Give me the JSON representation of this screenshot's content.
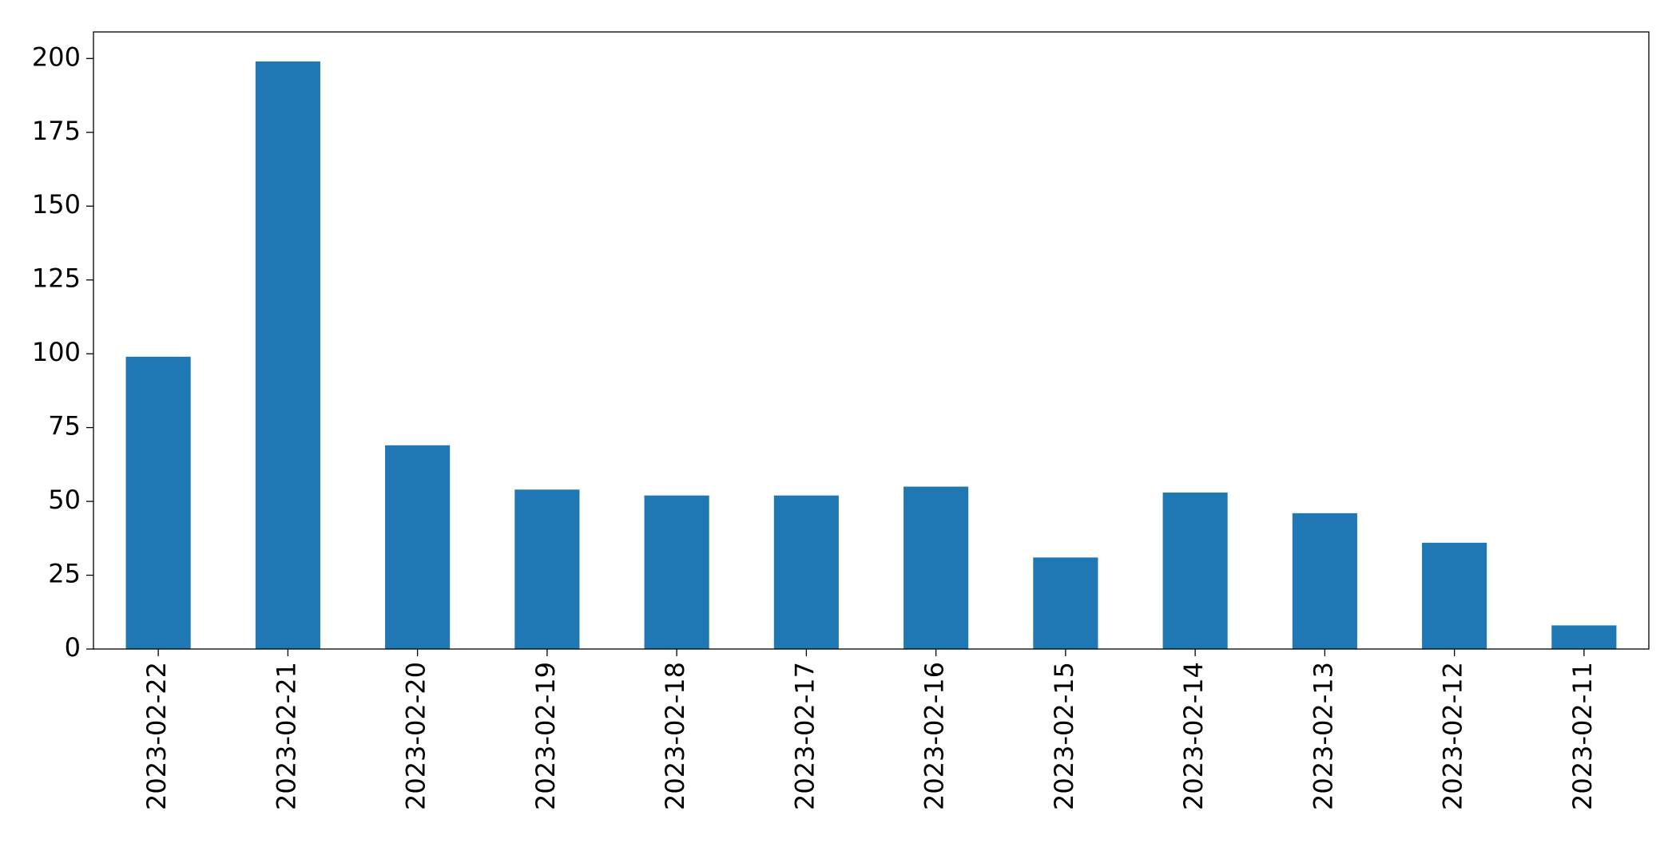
{
  "chart_data": {
    "type": "bar",
    "categories": [
      "2023-02-22",
      "2023-02-21",
      "2023-02-20",
      "2023-02-19",
      "2023-02-18",
      "2023-02-17",
      "2023-02-16",
      "2023-02-15",
      "2023-02-14",
      "2023-02-13",
      "2023-02-12",
      "2023-02-11"
    ],
    "values": [
      99,
      199,
      69,
      54,
      52,
      52,
      55,
      31,
      53,
      46,
      36,
      8
    ],
    "color": "#1f77b4",
    "ylim": [
      0,
      209
    ],
    "yticks": [
      0,
      25,
      50,
      75,
      100,
      125,
      150,
      175,
      200
    ],
    "grid": false
  }
}
